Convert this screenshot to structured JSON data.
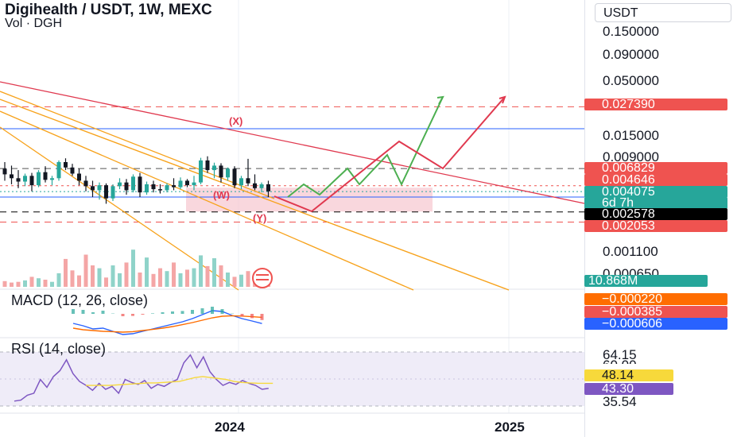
{
  "header": {
    "title": "Digihealth / USDT, 1W, MEXC",
    "volume_label": "Vol · DGH"
  },
  "toolbar": {
    "currency_label": "USDT"
  },
  "colors": {
    "up": "#26a69a",
    "down": "#131722",
    "bear_red": "#ef5350",
    "green_path": "#4caf50",
    "orange_trend": "#f7a21b",
    "red_trend": "#e0394f",
    "blue_level": "#2962ff",
    "zone": "#f7c6cf",
    "macd": "#2962ff",
    "signal": "#ff6d00",
    "rsi": "#7e57c2",
    "rsi_ma": "#f7d93b",
    "rsi_bg": "#efecf8"
  },
  "chart_data": [
    {
      "type": "candlestick",
      "title": "Digihealth / USDT, 1W, MEXC",
      "price_axis": {
        "scale": "log",
        "tick_labels": [
          "0.150000",
          "0.090000",
          "0.050000",
          "0.015000",
          "0.009000",
          "0.001100",
          "0.000650"
        ]
      },
      "time_axis": {
        "tick_labels": [
          "2024",
          "2025"
        ]
      },
      "price_badges": [
        {
          "label": "0.027390",
          "color": "#ef5350"
        },
        {
          "label": "0.006829",
          "color": "#ef5350"
        },
        {
          "label": "0.004646",
          "color": "#ef5350"
        },
        {
          "label": "0.004075",
          "sub": "6d 7h",
          "color": "#26a69a"
        },
        {
          "label": "0.002578",
          "color": "#000000"
        },
        {
          "label": "0.002053",
          "color": "#ef5350"
        }
      ],
      "volume_badge": {
        "label": "10.868M",
        "color": "#26a69a"
      },
      "annotations": [
        "(X)",
        "(W)",
        "(Y)"
      ],
      "series": [
        {
          "name": "DGH/USDT",
          "candles_ohlc": [
            [
              0.0068,
              0.0079,
              0.0052,
              0.006
            ],
            [
              0.006,
              0.0073,
              0.0048,
              0.0055
            ],
            [
              0.0055,
              0.0066,
              0.0044,
              0.0051
            ],
            [
              0.0051,
              0.0061,
              0.0046,
              0.0058
            ],
            [
              0.0058,
              0.0062,
              0.0041,
              0.0047
            ],
            [
              0.0047,
              0.0066,
              0.0045,
              0.0063
            ],
            [
              0.0063,
              0.0072,
              0.005,
              0.0053
            ],
            [
              0.0053,
              0.0058,
              0.0047,
              0.0055
            ],
            [
              0.0055,
              0.0082,
              0.0052,
              0.0079
            ],
            [
              0.0079,
              0.0086,
              0.0066,
              0.007
            ],
            [
              0.007,
              0.0076,
              0.0058,
              0.0061
            ],
            [
              0.0061,
              0.0068,
              0.0047,
              0.0052
            ],
            [
              0.0052,
              0.0058,
              0.0041,
              0.0046
            ],
            [
              0.0046,
              0.0052,
              0.0036,
              0.0042
            ],
            [
              0.0042,
              0.005,
              0.0034,
              0.0047
            ],
            [
              0.0047,
              0.0049,
              0.0031,
              0.0035
            ],
            [
              0.0035,
              0.0048,
              0.0033,
              0.0046
            ],
            [
              0.0046,
              0.0055,
              0.0043,
              0.005
            ],
            [
              0.005,
              0.0054,
              0.0038,
              0.0042
            ],
            [
              0.0042,
              0.006,
              0.004,
              0.0057
            ],
            [
              0.0057,
              0.0062,
              0.0036,
              0.004
            ],
            [
              0.004,
              0.0051,
              0.0038,
              0.0048
            ],
            [
              0.0048,
              0.0052,
              0.004,
              0.0043
            ],
            [
              0.0043,
              0.0048,
              0.0039,
              0.0042
            ],
            [
              0.0042,
              0.0049,
              0.004,
              0.0047
            ],
            [
              0.0047,
              0.0055,
              0.0042,
              0.0045
            ],
            [
              0.0045,
              0.0056,
              0.0043,
              0.0052
            ],
            [
              0.0052,
              0.0054,
              0.0045,
              0.0047
            ],
            [
              0.0047,
              0.0058,
              0.0042,
              0.005
            ],
            [
              0.005,
              0.0087,
              0.0048,
              0.0082
            ],
            [
              0.0082,
              0.009,
              0.0062,
              0.0066
            ],
            [
              0.0066,
              0.0078,
              0.0055,
              0.0073
            ],
            [
              0.0073,
              0.0077,
              0.005,
              0.0056
            ],
            [
              0.0056,
              0.007,
              0.0052,
              0.0068
            ],
            [
              0.0068,
              0.0072,
              0.0044,
              0.0047
            ],
            [
              0.0047,
              0.0058,
              0.0043,
              0.0055
            ],
            [
              0.0055,
              0.0085,
              0.0046,
              0.0049
            ],
            [
              0.0049,
              0.006,
              0.0042,
              0.0044
            ],
            [
              0.0044,
              0.005,
              0.004,
              0.0048
            ],
            [
              0.0048,
              0.0052,
              0.0036,
              0.0041
            ]
          ],
          "volume": [
            0.8,
            0.6,
            0.7,
            0.9,
            1.4,
            1.2,
            1.0,
            0.7,
            1.9,
            3.9,
            2.3,
            1.6,
            4.5,
            3.0,
            2.6,
            1.3,
            3.0,
            1.9,
            3.4,
            5.2,
            2.0,
            4.1,
            1.8,
            2.6,
            2.2,
            3.4,
            1.9,
            2.4,
            2.6,
            4.4,
            2.9,
            4.0,
            3.0,
            2.0,
            1.4,
            1.7,
            2.2,
            1.4,
            1.1,
            0.9
          ]
        }
      ]
    },
    {
      "type": "line",
      "title": "MACD (12, 26, close)",
      "badges": [
        {
          "label": "−0.000220",
          "color": "#ff6d00"
        },
        {
          "label": "−0.000385",
          "color": "#ef5350"
        },
        {
          "label": "−0.000606",
          "color": "#2962ff"
        }
      ],
      "series": [
        {
          "name": "MACD",
          "values": [
            -0.0006,
            -0.00075,
            -0.00095,
            -0.0009,
            -0.0011,
            -0.0013,
            -0.00125,
            -0.0011,
            -0.00095,
            -0.0008,
            -0.00065,
            -0.0005,
            -0.0003,
            -5e-05,
            0.0002,
            0.00015,
            -0.0001,
            -0.0003,
            -0.00045,
            -0.00061
          ]
        },
        {
          "name": "Signal",
          "values": [
            -0.0009,
            -0.001,
            -0.00105,
            -0.0011,
            -0.00112,
            -0.00115,
            -0.00112,
            -0.00105,
            -0.00098,
            -0.0009,
            -0.0008,
            -0.00068,
            -0.00055,
            -0.0004,
            -0.00025,
            -0.00015,
            -0.00012,
            -0.00014,
            -0.00018,
            -0.00022
          ]
        }
      ]
    },
    {
      "type": "line",
      "title": "RSI (14, close)",
      "axis_labels": [
        "64.15",
        "60.00",
        "35.54"
      ],
      "badges": [
        {
          "label": "48.14",
          "color": "#f7d93b"
        },
        {
          "label": "43.30",
          "color": "#7e57c2"
        }
      ],
      "series": [
        {
          "name": "RSI",
          "values": [
            30,
            31,
            36,
            38,
            52,
            44,
            55,
            61,
            72,
            58,
            50,
            46,
            41,
            48,
            42,
            45,
            38,
            52,
            49,
            47,
            51,
            43,
            47,
            45,
            49,
            52,
            69,
            77,
            64,
            75,
            60,
            52,
            46,
            49,
            47,
            51,
            48,
            46,
            42,
            43
          ]
        },
        {
          "name": "RSI MA",
          "values": [
            46,
            46,
            46,
            46,
            46.5,
            47,
            47.5,
            48,
            48.5,
            48.5,
            49,
            49.5,
            50,
            52,
            54,
            55,
            54,
            53,
            52,
            50,
            49,
            48.5,
            48.2,
            48.1,
            48.1
          ]
        }
      ]
    }
  ]
}
